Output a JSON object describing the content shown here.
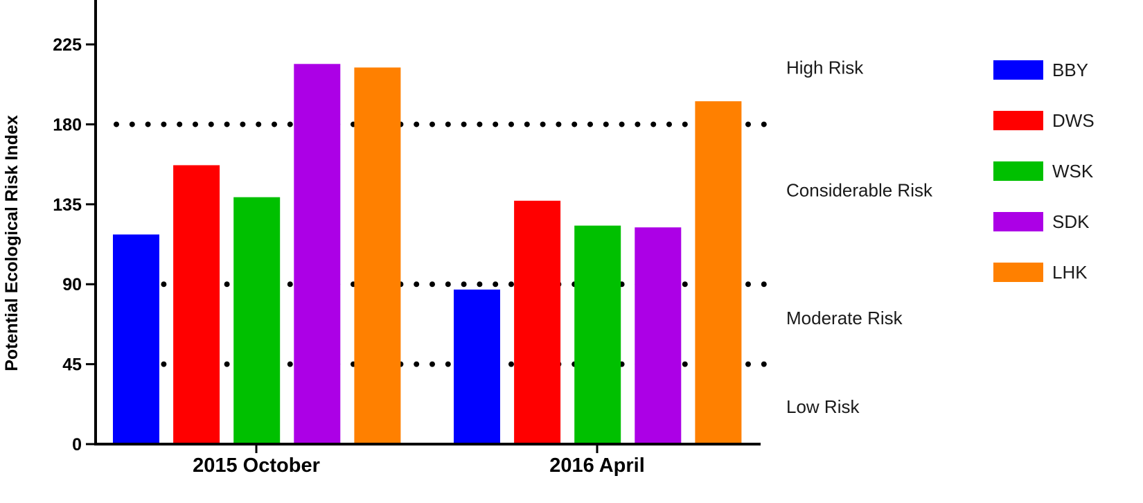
{
  "chart_data": {
    "type": "bar",
    "title": "",
    "xlabel": "",
    "ylabel": "Potential Ecological Risk Index",
    "ylim": [
      0,
      250
    ],
    "yticks": [
      0,
      45,
      90,
      135,
      180,
      225
    ],
    "categories": [
      "2015 October",
      "2016 April"
    ],
    "series": [
      {
        "name": "BBY",
        "color": "#0000ff",
        "values": [
          118,
          87
        ]
      },
      {
        "name": "DWS",
        "color": "#ff0000",
        "values": [
          157,
          137
        ]
      },
      {
        "name": "WSK",
        "color": "#00c000",
        "values": [
          139,
          123
        ]
      },
      {
        "name": "SDK",
        "color": "#ac00e6",
        "values": [
          214,
          122
        ]
      },
      {
        "name": "LHK",
        "color": "#ff8000",
        "values": [
          212,
          193
        ]
      }
    ],
    "thresholds": [
      45,
      90,
      180
    ],
    "zones": [
      {
        "label": "High Risk",
        "value": 212
      },
      {
        "label": "Considerable Risk",
        "value": 143
      },
      {
        "label": "Moderate Risk",
        "value": 71
      },
      {
        "label": "Low Risk",
        "value": 21
      }
    ],
    "legend_position": "right",
    "grid": false
  }
}
